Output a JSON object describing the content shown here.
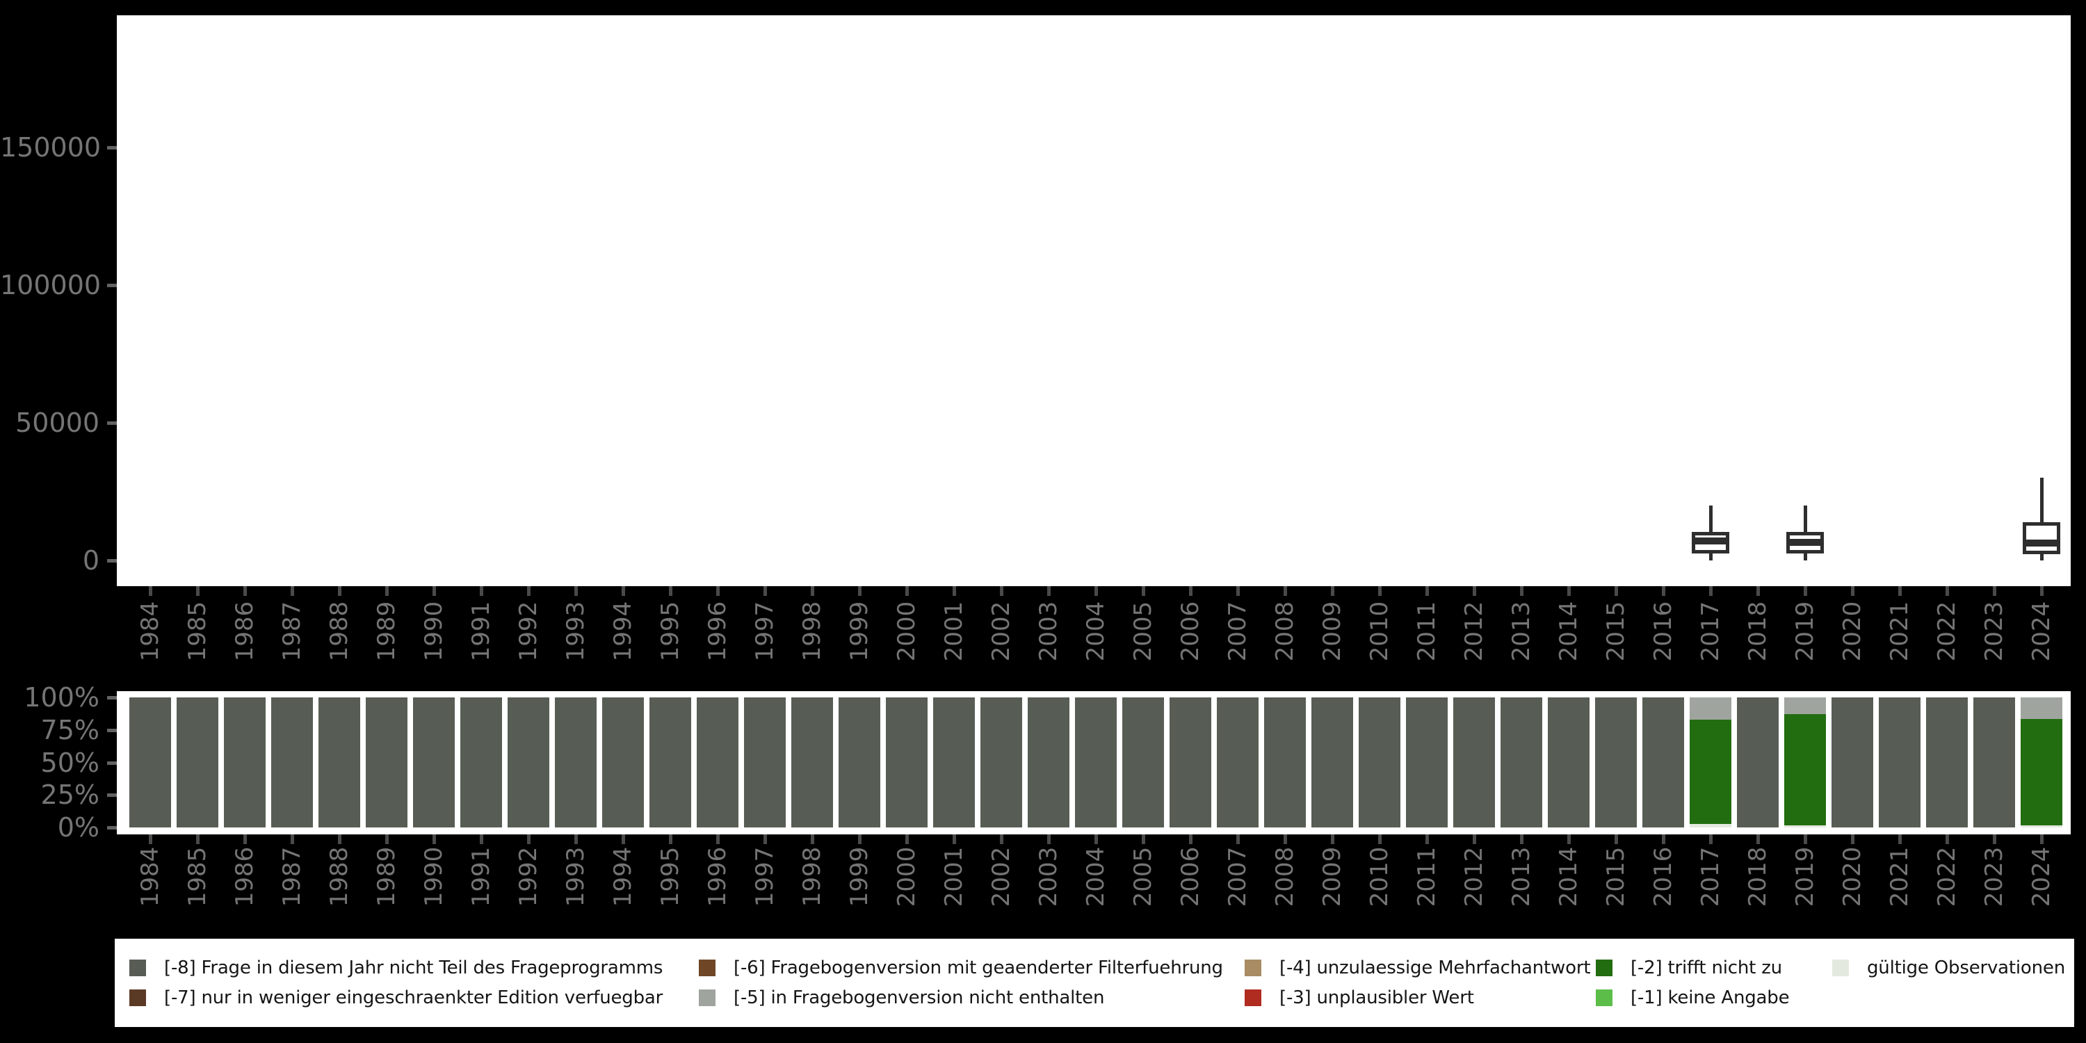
{
  "background_color": "#000000",
  "panel_color": "#ffffff",
  "axis_text_color": "#757575",
  "boxplot_stroke_color": "#2e2e2e",
  "colors": {
    "-8": "#575D54",
    "-7": "#5B3A25",
    "-6": "#6F4727",
    "-5": "#9FA59E",
    "-4": "#A98C63",
    "-3": "#B02B20",
    "-2": "#226D10",
    "-1": "#5CBD49",
    "valid": "#E4E9DF"
  },
  "years": [
    "1984",
    "1985",
    "1986",
    "1987",
    "1988",
    "1989",
    "1990",
    "1991",
    "1992",
    "1993",
    "1994",
    "1995",
    "1996",
    "1997",
    "1998",
    "1999",
    "2000",
    "2001",
    "2002",
    "2003",
    "2004",
    "2005",
    "2006",
    "2007",
    "2008",
    "2009",
    "2010",
    "2011",
    "2012",
    "2013",
    "2014",
    "2015",
    "2016",
    "2017",
    "2018",
    "2019",
    "2020",
    "2021",
    "2022",
    "2023",
    "2024"
  ],
  "top_chart": {
    "y_axis": [
      {
        "value": 0,
        "label": "0"
      },
      {
        "value": 50000,
        "label": "50000"
      },
      {
        "value": 100000,
        "label": "100000"
      },
      {
        "value": 150000,
        "label": "150000"
      }
    ]
  },
  "bottom_chart": {
    "y_axis": [
      {
        "value": 0,
        "label": "0%"
      },
      {
        "value": 25,
        "label": "25%"
      },
      {
        "value": 50,
        "label": "50%"
      },
      {
        "value": 75,
        "label": "75%"
      },
      {
        "value": 100,
        "label": "100%"
      }
    ]
  },
  "legend": {
    "items": [
      {
        "code": "-8",
        "label": "[-8] Frage in diesem Jahr nicht Teil des Frageprogramms",
        "col": 0,
        "row": 0
      },
      {
        "code": "-7",
        "label": "[-7] nur in weniger eingeschraenkter Edition verfuegbar",
        "col": 0,
        "row": 1
      },
      {
        "code": "-6",
        "label": "[-6] Fragebogenversion mit geaenderter Filterfuehrung",
        "col": 1,
        "row": 0
      },
      {
        "code": "-5",
        "label": "[-5] in Fragebogenversion nicht enthalten",
        "col": 1,
        "row": 1
      },
      {
        "code": "-4",
        "label": "[-4] unzulaessige Mehrfachantwort",
        "col": 2,
        "row": 0
      },
      {
        "code": "-3",
        "label": "[-3] unplausibler Wert",
        "col": 2,
        "row": 1
      },
      {
        "code": "-2",
        "label": "[-2] trifft nicht zu",
        "col": 3,
        "row": 0
      },
      {
        "code": "-1",
        "label": "[-1] keine Angabe",
        "col": 3,
        "row": 1
      },
      {
        "code": "valid",
        "label": "gültige Observationen",
        "col": 4,
        "row": 0
      }
    ]
  },
  "chart_data": [
    {
      "type": "boxplot",
      "title": "",
      "xlabel": "",
      "ylabel": "",
      "x_categories": "years",
      "ylim": [
        0,
        198000
      ],
      "y_ticks": [
        0,
        50000,
        100000,
        150000
      ],
      "grid": false,
      "boxplots": [
        {
          "year": "2017",
          "min": 0,
          "q1": 2500,
          "median": 7000,
          "q3": 10400,
          "max": 20000
        },
        {
          "year": "2019",
          "min": 0,
          "q1": 2400,
          "median": 6500,
          "q3": 10400,
          "max": 20000
        },
        {
          "year": "2024",
          "min": 0,
          "q1": 2300,
          "median": 6400,
          "q3": 14000,
          "max": 30000
        }
      ]
    },
    {
      "type": "stacked_bar_percent",
      "title": "",
      "xlabel": "",
      "ylabel": "",
      "x_categories": "years",
      "ylim": [
        0,
        100
      ],
      "y_ticks": [
        0,
        25,
        50,
        75,
        100
      ],
      "segment_order": "bottom_to_top",
      "bars": [
        {
          "year": "1984",
          "segments": [
            {
              "code": "-8",
              "value": 100
            }
          ]
        },
        {
          "year": "1985",
          "segments": [
            {
              "code": "-8",
              "value": 100
            }
          ]
        },
        {
          "year": "1986",
          "segments": [
            {
              "code": "-8",
              "value": 100
            }
          ]
        },
        {
          "year": "1987",
          "segments": [
            {
              "code": "-8",
              "value": 100
            }
          ]
        },
        {
          "year": "1988",
          "segments": [
            {
              "code": "-8",
              "value": 100
            }
          ]
        },
        {
          "year": "1989",
          "segments": [
            {
              "code": "-8",
              "value": 100
            }
          ]
        },
        {
          "year": "1990",
          "segments": [
            {
              "code": "-8",
              "value": 100
            }
          ]
        },
        {
          "year": "1991",
          "segments": [
            {
              "code": "-8",
              "value": 100
            }
          ]
        },
        {
          "year": "1992",
          "segments": [
            {
              "code": "-8",
              "value": 100
            }
          ]
        },
        {
          "year": "1993",
          "segments": [
            {
              "code": "-8",
              "value": 100
            }
          ]
        },
        {
          "year": "1994",
          "segments": [
            {
              "code": "-8",
              "value": 100
            }
          ]
        },
        {
          "year": "1995",
          "segments": [
            {
              "code": "-8",
              "value": 100
            }
          ]
        },
        {
          "year": "1996",
          "segments": [
            {
              "code": "-8",
              "value": 100
            }
          ]
        },
        {
          "year": "1997",
          "segments": [
            {
              "code": "-8",
              "value": 100
            }
          ]
        },
        {
          "year": "1998",
          "segments": [
            {
              "code": "-8",
              "value": 100
            }
          ]
        },
        {
          "year": "1999",
          "segments": [
            {
              "code": "-8",
              "value": 100
            }
          ]
        },
        {
          "year": "2000",
          "segments": [
            {
              "code": "-8",
              "value": 100
            }
          ]
        },
        {
          "year": "2001",
          "segments": [
            {
              "code": "-8",
              "value": 100
            }
          ]
        },
        {
          "year": "2002",
          "segments": [
            {
              "code": "-8",
              "value": 100
            }
          ]
        },
        {
          "year": "2003",
          "segments": [
            {
              "code": "-8",
              "value": 100
            }
          ]
        },
        {
          "year": "2004",
          "segments": [
            {
              "code": "-8",
              "value": 100
            }
          ]
        },
        {
          "year": "2005",
          "segments": [
            {
              "code": "-8",
              "value": 100
            }
          ]
        },
        {
          "year": "2006",
          "segments": [
            {
              "code": "-8",
              "value": 100
            }
          ]
        },
        {
          "year": "2007",
          "segments": [
            {
              "code": "-8",
              "value": 100
            }
          ]
        },
        {
          "year": "2008",
          "segments": [
            {
              "code": "-8",
              "value": 100
            }
          ]
        },
        {
          "year": "2009",
          "segments": [
            {
              "code": "-8",
              "value": 100
            }
          ]
        },
        {
          "year": "2010",
          "segments": [
            {
              "code": "-8",
              "value": 100
            }
          ]
        },
        {
          "year": "2011",
          "segments": [
            {
              "code": "-8",
              "value": 100
            }
          ]
        },
        {
          "year": "2012",
          "segments": [
            {
              "code": "-8",
              "value": 100
            }
          ]
        },
        {
          "year": "2013",
          "segments": [
            {
              "code": "-8",
              "value": 100
            }
          ]
        },
        {
          "year": "2014",
          "segments": [
            {
              "code": "-8",
              "value": 100
            }
          ]
        },
        {
          "year": "2015",
          "segments": [
            {
              "code": "-8",
              "value": 100
            }
          ]
        },
        {
          "year": "2016",
          "segments": [
            {
              "code": "-8",
              "value": 100
            }
          ]
        },
        {
          "year": "2017",
          "segments": [
            {
              "code": "valid",
              "value": 2.5
            },
            {
              "code": "-2",
              "value": 80.5
            },
            {
              "code": "-5",
              "value": 17
            }
          ]
        },
        {
          "year": "2018",
          "segments": [
            {
              "code": "-8",
              "value": 100
            }
          ]
        },
        {
          "year": "2019",
          "segments": [
            {
              "code": "valid",
              "value": 1.5
            },
            {
              "code": "-2",
              "value": 85.5
            },
            {
              "code": "-5",
              "value": 13
            }
          ]
        },
        {
          "year": "2020",
          "segments": [
            {
              "code": "-8",
              "value": 100
            }
          ]
        },
        {
          "year": "2021",
          "segments": [
            {
              "code": "-8",
              "value": 100
            }
          ]
        },
        {
          "year": "2022",
          "segments": [
            {
              "code": "-8",
              "value": 100
            }
          ]
        },
        {
          "year": "2023",
          "segments": [
            {
              "code": "-8",
              "value": 100
            }
          ]
        },
        {
          "year": "2024",
          "segments": [
            {
              "code": "valid",
              "value": 1.5
            },
            {
              "code": "-2",
              "value": 82
            },
            {
              "code": "-5",
              "value": 16.5
            }
          ]
        }
      ]
    }
  ]
}
